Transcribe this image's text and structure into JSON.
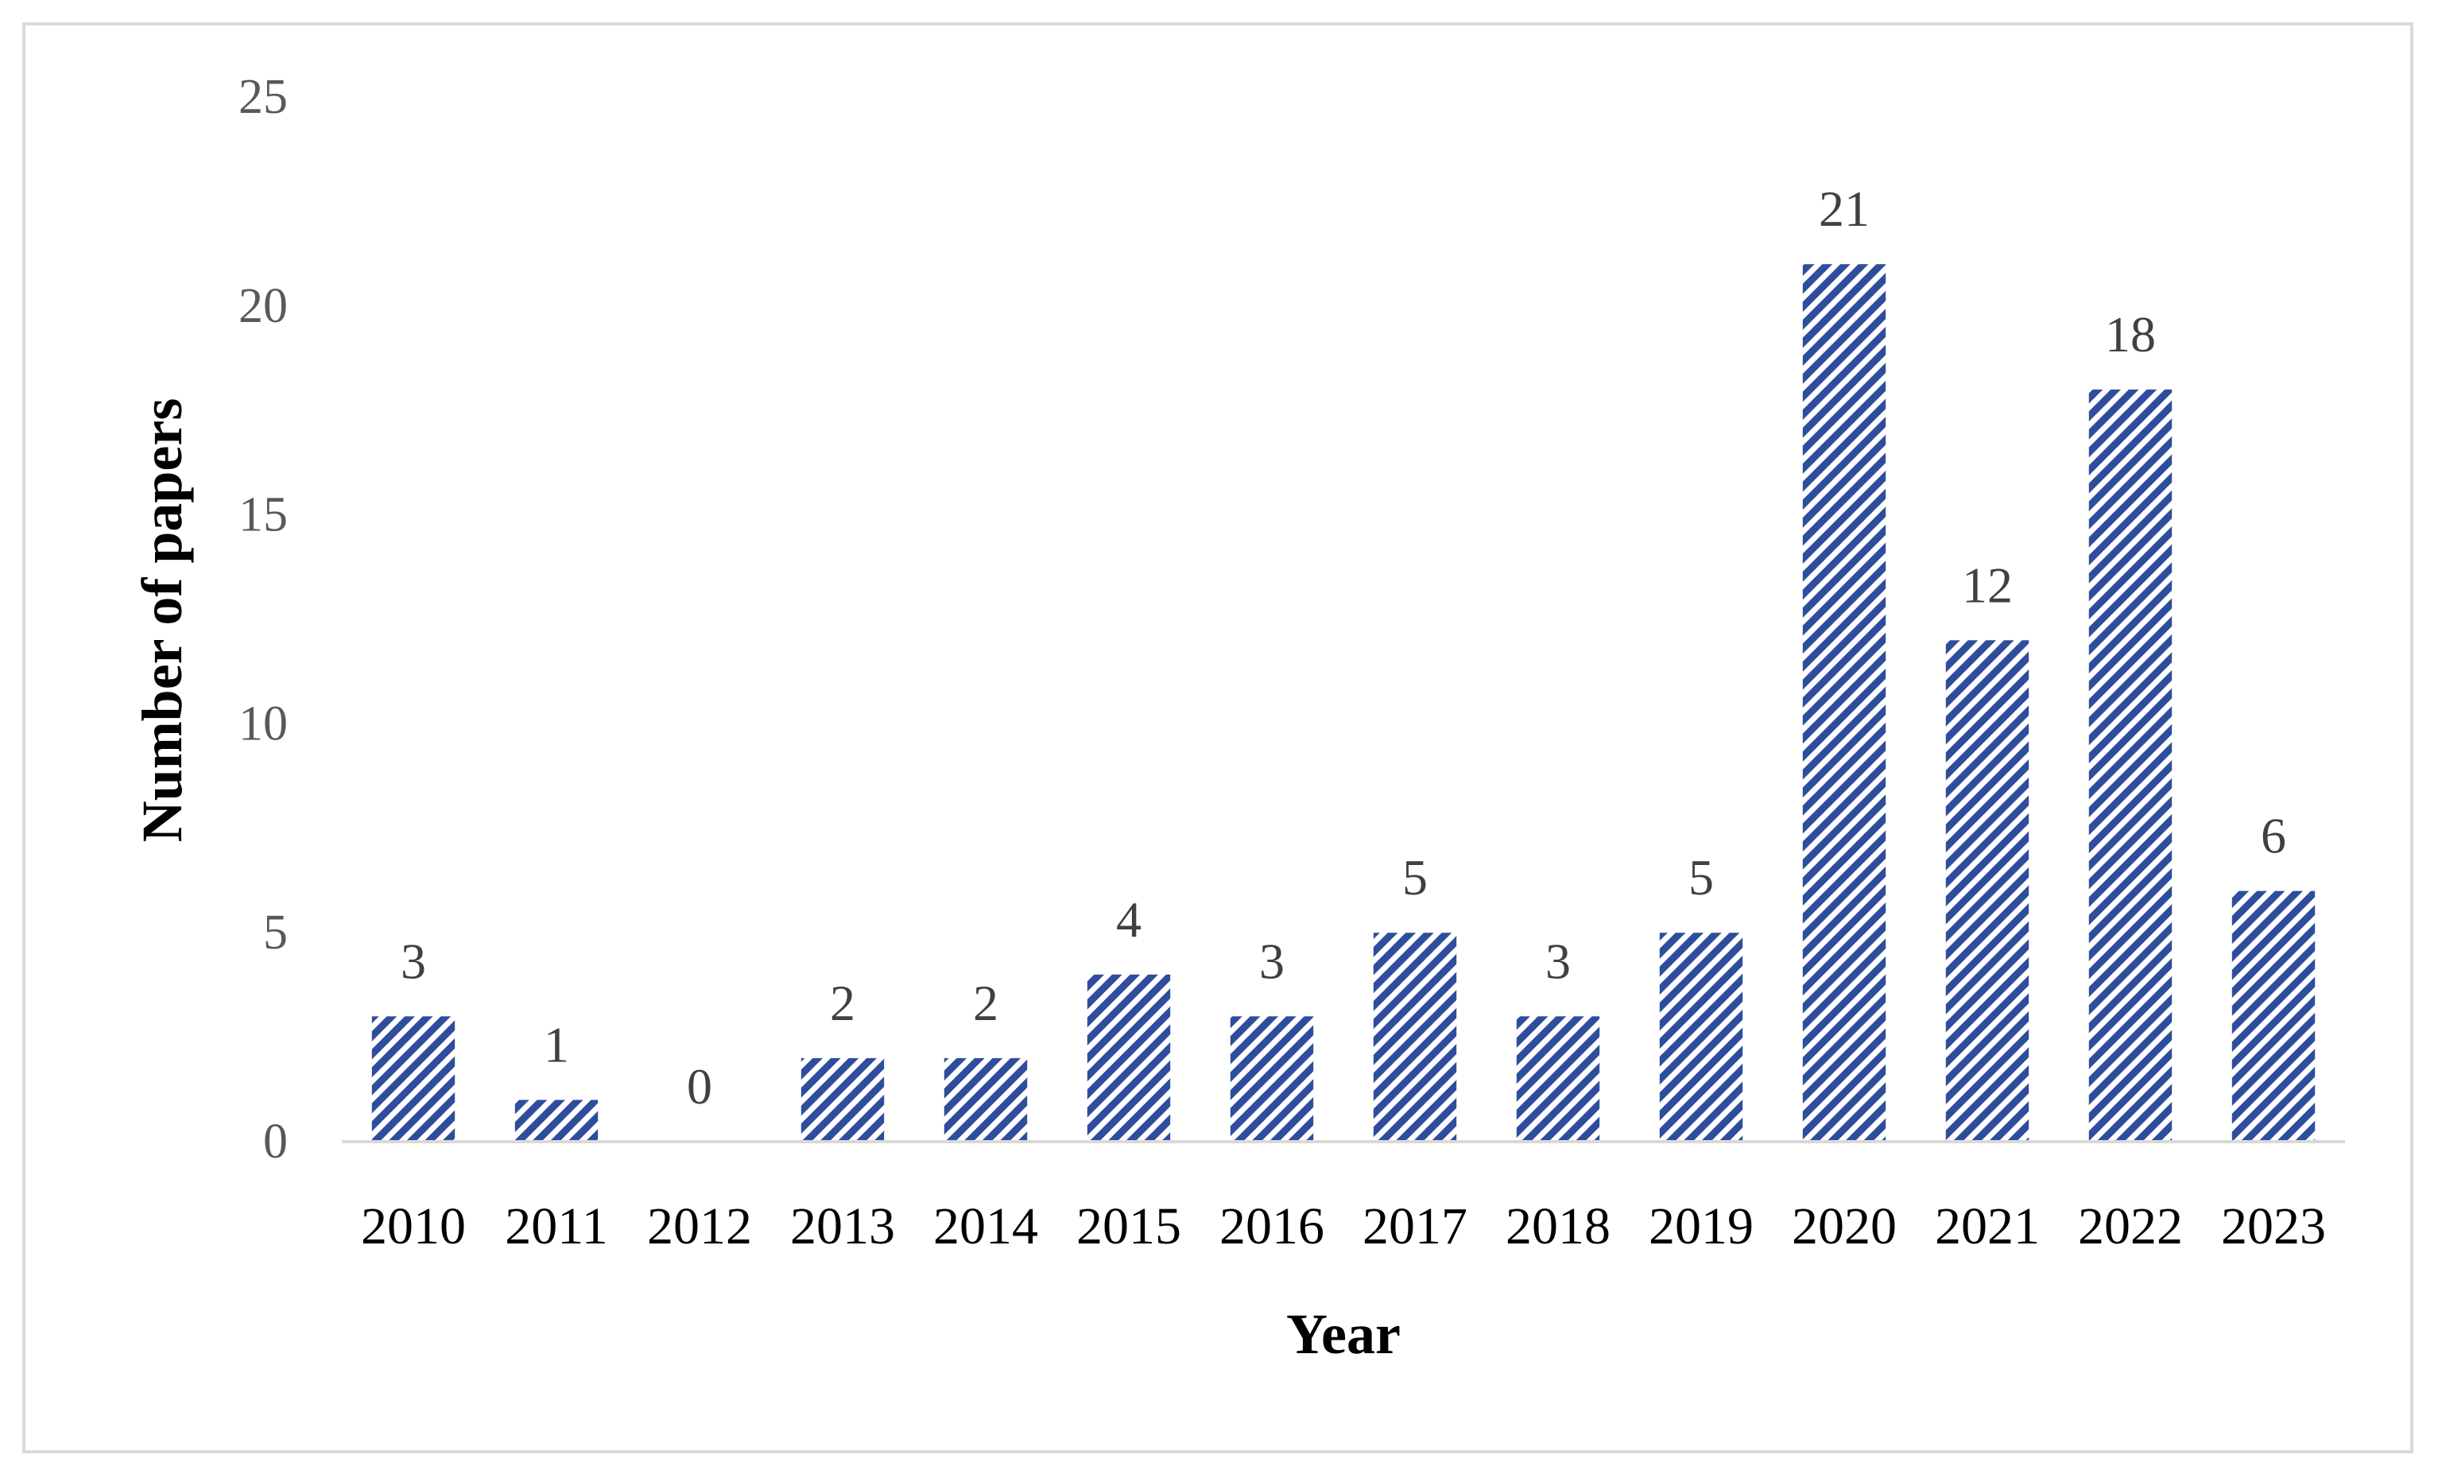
{
  "chart_data": {
    "type": "bar",
    "title": "",
    "xlabel": "Year",
    "ylabel": "Number of papers",
    "categories": [
      "2010",
      "2011",
      "2012",
      "2013",
      "2014",
      "2015",
      "2016",
      "2017",
      "2018",
      "2019",
      "2020",
      "2021",
      "2022",
      "2023"
    ],
    "values": [
      3,
      1,
      0,
      2,
      2,
      4,
      3,
      5,
      3,
      5,
      21,
      12,
      18,
      6
    ],
    "ylim": [
      0,
      25
    ],
    "yticks": [
      0,
      5,
      10,
      15,
      20,
      25
    ],
    "data_labels": true,
    "grid": false,
    "legend": "none",
    "bar_fill": "diagonal-hatch",
    "colors": {
      "bar": "#2e4d9c",
      "hatch_bg": "#ffffff",
      "axis": "#d9d9d9",
      "tick_text": "#595959",
      "label_text": "#404040"
    }
  }
}
